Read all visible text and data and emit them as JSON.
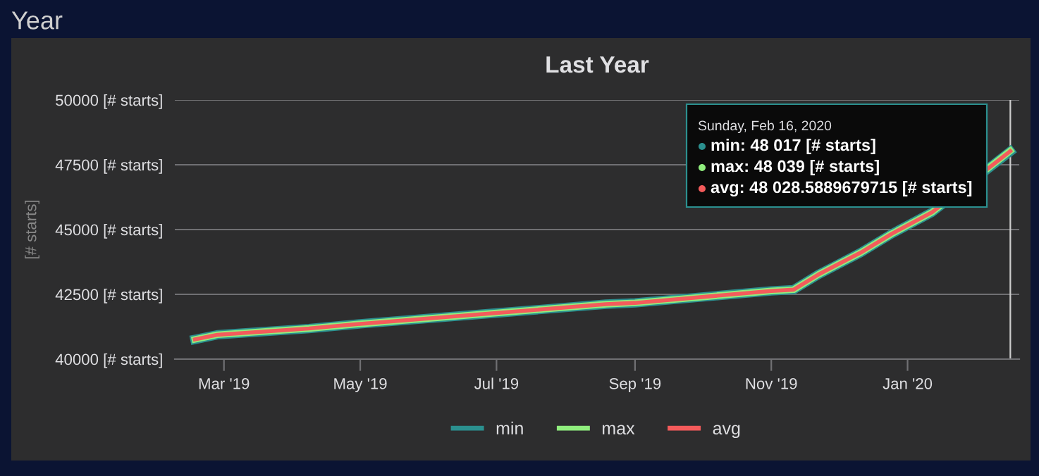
{
  "chart_data": {
    "type": "line",
    "title": "Last Year",
    "ylabel": "[# starts]",
    "x": [
      "2019-02-16",
      "2019-02-26",
      "2019-04-08",
      "2019-05-01",
      "2019-07-01",
      "2019-08-19",
      "2019-09-01",
      "2019-11-01",
      "2019-11-11",
      "2019-11-22",
      "2019-11-30",
      "2019-12-11",
      "2019-12-25",
      "2020-01-12",
      "2020-02-16"
    ],
    "series": [
      {
        "name": "min",
        "color": "#2b908f",
        "values": [
          40760,
          40940,
          41180,
          41360,
          41780,
          42120,
          42170,
          42630,
          42680,
          43260,
          43620,
          44110,
          44840,
          45670,
          48017
        ]
      },
      {
        "name": "max",
        "color": "#90ee7e",
        "values": [
          40760,
          40940,
          41180,
          41360,
          41780,
          42120,
          42170,
          42630,
          42680,
          43260,
          43620,
          44110,
          44840,
          45670,
          48039
        ]
      },
      {
        "name": "avg",
        "color": "#f45b5b",
        "values": [
          40760,
          40940,
          41180,
          41360,
          41780,
          42120,
          42170,
          42630,
          42680,
          43260,
          43620,
          44110,
          44840,
          45670,
          48028.5889679715
        ]
      }
    ],
    "xlim": [
      "2019-02-07",
      "2020-02-20"
    ],
    "xticks": [
      {
        "value": "2019-03-01",
        "label": "Mar '19"
      },
      {
        "value": "2019-05-01",
        "label": "May '19"
      },
      {
        "value": "2019-07-01",
        "label": "Jul '19"
      },
      {
        "value": "2019-09-01",
        "label": "Sep '19"
      },
      {
        "value": "2019-11-01",
        "label": "Nov '19"
      },
      {
        "value": "2020-01-01",
        "label": "Jan '20"
      }
    ],
    "ylim": [
      40000,
      50000
    ],
    "yticks": [
      {
        "value": 40000,
        "label": "40000 [# starts]"
      },
      {
        "value": 42500,
        "label": "42500 [# starts]"
      },
      {
        "value": 45000,
        "label": "45000 [# starts]"
      },
      {
        "value": 47500,
        "label": "47500 [# starts]"
      },
      {
        "value": 50000,
        "label": "50000 [# starts]"
      }
    ],
    "ref_lines": [
      {
        "axis": "x",
        "value": "2020-02-16",
        "color": "#cccccc"
      }
    ],
    "annotations": [
      "Year",
      "Sunday, Feb 16, 2020",
      "min: 48 017 [# starts]",
      "max: 48 039 [# starts]",
      "avg: 48 028.5889679715 [# starts]"
    ],
    "grid": "y",
    "legend": "bottom",
    "marker": "none",
    "line_style": "solid"
  }
}
